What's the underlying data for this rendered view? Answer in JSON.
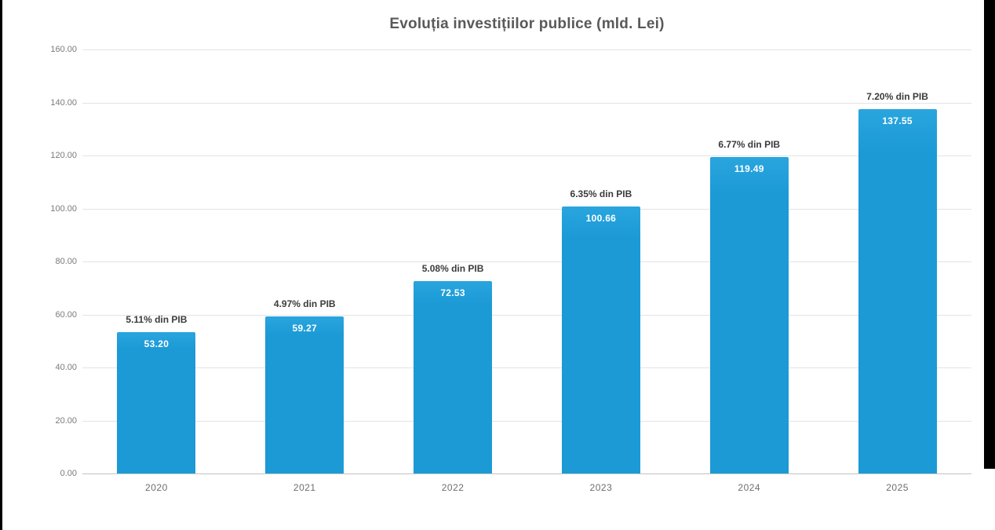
{
  "page": {
    "background": "#ffffff",
    "letterbox_color": "#000000"
  },
  "chart_data": {
    "type": "bar",
    "title": "Evoluția investițiilor publice (mld. Lei)",
    "categories": [
      "2020",
      "2021",
      "2022",
      "2023",
      "2024",
      "2025"
    ],
    "values": [
      53.2,
      59.27,
      72.53,
      100.66,
      119.49,
      137.55
    ],
    "value_labels": [
      "53.20",
      "59.27",
      "72.53",
      "100.66",
      "119.49",
      "137.55"
    ],
    "bar_annotations": [
      "5.11% din PIB",
      "4.97% din PIB",
      "5.08% din PIB",
      "6.35% din PIB",
      "6.77% din PIB",
      "7.20% din PIB"
    ],
    "xlabel": "",
    "ylabel": "",
    "ylim": [
      0,
      160
    ],
    "ytick_values": [
      0,
      20,
      40,
      60,
      80,
      100,
      120,
      140,
      160
    ],
    "ytick_labels": [
      "0.00",
      "20.00",
      "40.00",
      "60.00",
      "80.00",
      "100.00",
      "120.00",
      "140.00",
      "160.00"
    ],
    "grid": "horizontal",
    "legend_position": "none",
    "colors": {
      "bar": "#1b9ad6",
      "bar_top_highlight": "#2aa5de",
      "value_label": "#ffffff",
      "annotation": "#3b3b3b",
      "title": "#595959",
      "gridline": "#e3e3e3",
      "axis_line": "#c2c2c2",
      "tick_label": "#7a7a7a",
      "category_label": "#6e6e6e"
    }
  }
}
